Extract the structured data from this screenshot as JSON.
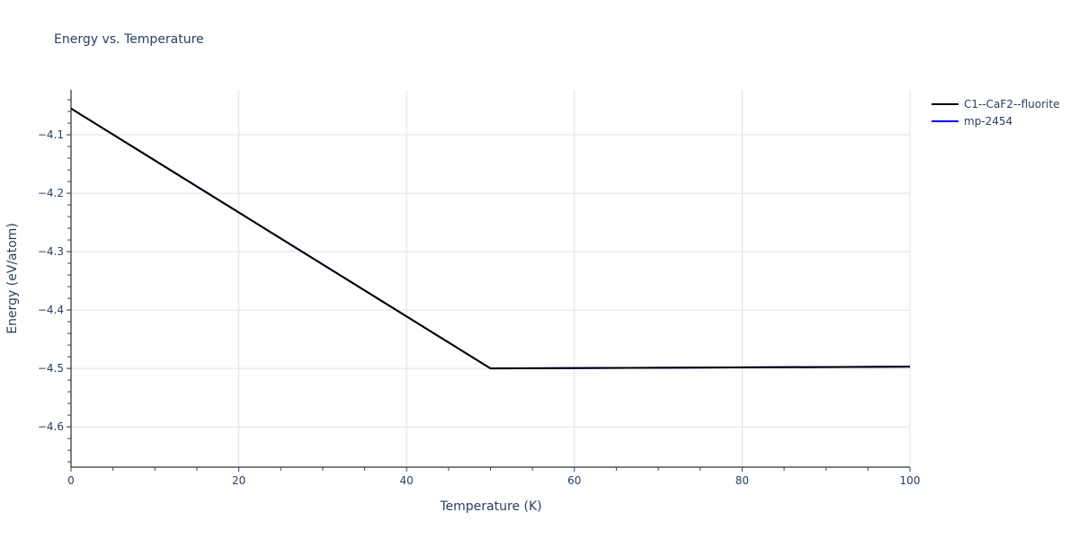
{
  "chart_data": {
    "type": "line",
    "title": "Energy vs. Temperature",
    "xlabel": "Temperature (K)",
    "ylabel": "Energy (eV/atom)",
    "xlim": [
      0,
      100
    ],
    "ylim": [
      -4.669,
      -4.023
    ],
    "x_ticks": [
      0,
      20,
      40,
      60,
      80,
      100
    ],
    "x_tick_labels": [
      "0",
      "20",
      "40",
      "60",
      "80",
      "100"
    ],
    "y_ticks": [
      -4.1,
      -4.2,
      -4.3,
      -4.4,
      -4.5,
      -4.6
    ],
    "y_tick_labels": [
      "−4.1",
      "−4.2",
      "−4.3",
      "−4.4",
      "−4.5",
      "−4.6"
    ],
    "grid": true,
    "legend_position": "right-top",
    "series": [
      {
        "name": "C1--CaF2--fluorite",
        "color": "#000000",
        "x": [
          0,
          50,
          100
        ],
        "y": [
          -4.055,
          -4.5,
          -4.497
        ]
      },
      {
        "name": "mp-2454",
        "color": "#0000ff",
        "x": [
          0,
          50,
          100
        ],
        "y": [
          -4.055,
          -4.5,
          -4.497
        ]
      }
    ]
  },
  "legend": {
    "items": [
      {
        "label": "C1--CaF2--fluorite",
        "color": "#000000"
      },
      {
        "label": "mp-2454",
        "color": "#0000ff"
      }
    ]
  }
}
